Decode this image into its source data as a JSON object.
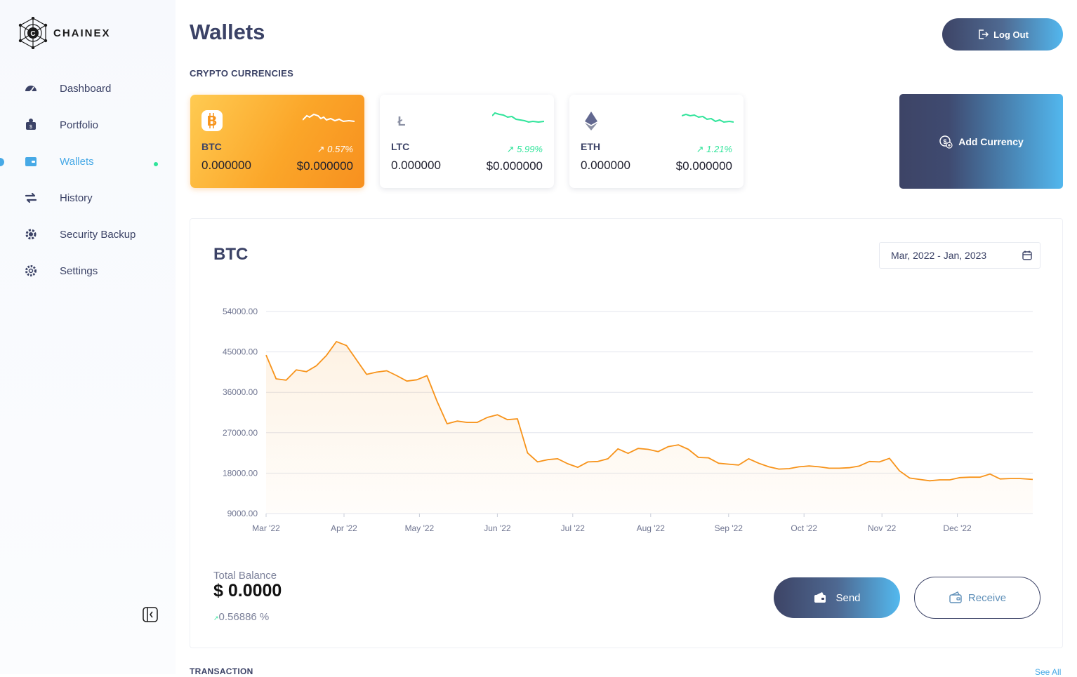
{
  "brand": {
    "name": "CHAINEX"
  },
  "sidebar": {
    "items": [
      {
        "label": "Dashboard",
        "icon": "dashboard-gauge-icon",
        "active": false
      },
      {
        "label": "Portfolio",
        "icon": "portfolio-coins-icon",
        "active": false
      },
      {
        "label": "Wallets",
        "icon": "wallet-icon",
        "active": true
      },
      {
        "label": "History",
        "icon": "swap-arrows-icon",
        "active": false
      },
      {
        "label": "Security Backup",
        "icon": "security-gear-icon",
        "active": false
      },
      {
        "label": "Settings",
        "icon": "settings-gear-icon",
        "active": false
      }
    ]
  },
  "header": {
    "title": "Wallets",
    "logout_label": "Log Out"
  },
  "crypto": {
    "section_title": "CRYPTO CURRENCIES",
    "cards": [
      {
        "symbol": "BTC",
        "change": "0.57%",
        "amount": "0.000000",
        "usd": "$0.000000"
      },
      {
        "symbol": "LTC",
        "change": "5.99%",
        "amount": "0.000000",
        "usd": "$0.000000"
      },
      {
        "symbol": "ETH",
        "change": "1.21%",
        "amount": "0.000000",
        "usd": "$0.000000"
      }
    ],
    "add_label": "Add Currency"
  },
  "panel": {
    "title": "BTC",
    "date_range": "Mar, 2022 - Jan, 2023",
    "total_balance_label": "Total Balance",
    "total_balance_value": "$ 0.0000",
    "balance_change": "0.56886 %",
    "send_label": "Send",
    "receive_label": "Receive"
  },
  "transactions": {
    "title": "TRANSACTION",
    "see_all": "See All"
  },
  "colors": {
    "accent": "#47a9e6",
    "navy": "#3b4266",
    "btc_orange": "#f7931a",
    "positive": "#2fe49a"
  },
  "chart_data": {
    "type": "area",
    "title": "BTC",
    "xlabel": "",
    "ylabel": "",
    "ylim": [
      9000,
      54000
    ],
    "yticks": [
      "54000.00",
      "45000.00",
      "36000.00",
      "27000.00",
      "18000.00",
      "9000.00"
    ],
    "xticks": [
      "Mar '22",
      "Apr '22",
      "May '22",
      "Jun '22",
      "Jul '22",
      "Aug '22",
      "Sep '22",
      "Oct '22",
      "Nov '22",
      "Dec '22"
    ],
    "grid": true,
    "series": [
      {
        "x": [
          "2022-03-01",
          "2022-03-05",
          "2022-03-09",
          "2022-03-13",
          "2022-03-17",
          "2022-03-21",
          "2022-03-25",
          "2022-03-29",
          "2022-04-02",
          "2022-04-06",
          "2022-04-10",
          "2022-04-14",
          "2022-04-18",
          "2022-04-22",
          "2022-04-26",
          "2022-04-30",
          "2022-05-04",
          "2022-05-08",
          "2022-05-12",
          "2022-05-16",
          "2022-05-20",
          "2022-05-24",
          "2022-05-28",
          "2022-06-01",
          "2022-06-05",
          "2022-06-09",
          "2022-06-13",
          "2022-06-17",
          "2022-06-21",
          "2022-06-25",
          "2022-06-29",
          "2022-07-03",
          "2022-07-07",
          "2022-07-11",
          "2022-07-15",
          "2022-07-19",
          "2022-07-23",
          "2022-07-27",
          "2022-07-31",
          "2022-08-04",
          "2022-08-08",
          "2022-08-12",
          "2022-08-16",
          "2022-08-20",
          "2022-08-24",
          "2022-08-28",
          "2022-09-01",
          "2022-09-05",
          "2022-09-09",
          "2022-09-13",
          "2022-09-17",
          "2022-09-21",
          "2022-09-25",
          "2022-09-29",
          "2022-10-03",
          "2022-10-07",
          "2022-10-11",
          "2022-10-15",
          "2022-10-19",
          "2022-10-23",
          "2022-10-27",
          "2022-10-31",
          "2022-11-04",
          "2022-11-08",
          "2022-11-12",
          "2022-11-16",
          "2022-11-20",
          "2022-11-24",
          "2022-11-28",
          "2022-12-02",
          "2022-12-06",
          "2022-12-10",
          "2022-12-14",
          "2022-12-18",
          "2022-12-22",
          "2022-12-26",
          "2022-12-31"
        ],
        "values": [
          44300,
          39000,
          38700,
          41000,
          40600,
          41900,
          44200,
          47300,
          46400,
          43200,
          40000,
          40500,
          40800,
          39700,
          38500,
          38800,
          39700,
          34000,
          29000,
          29600,
          29300,
          29300,
          30400,
          31000,
          29900,
          30100,
          22500,
          20500,
          21000,
          21200,
          20100,
          19300,
          20500,
          20600,
          21200,
          23400,
          22400,
          23500,
          23300,
          22800,
          23900,
          24300,
          23300,
          21500,
          21400,
          20200,
          20000,
          19800,
          21200,
          20200,
          19400,
          18900,
          19000,
          19400,
          19600,
          19400,
          19100,
          19100,
          19200,
          19600,
          20600,
          20500,
          21300,
          18500,
          16900,
          16600,
          16300,
          16500,
          16500,
          17000,
          17100,
          17100,
          17800,
          16700,
          16800,
          16800,
          16600
        ]
      }
    ]
  }
}
